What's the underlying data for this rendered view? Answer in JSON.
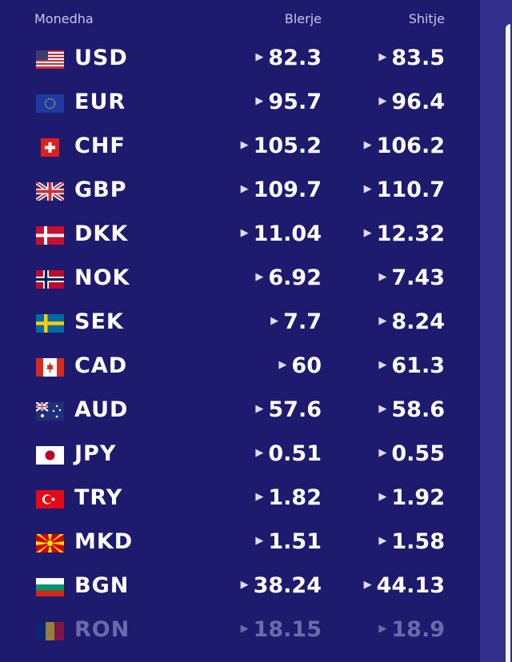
{
  "header": {
    "currency": "Monedha",
    "buy": "Blerje",
    "sell": "Shitje"
  },
  "rows": [
    {
      "code": "USD",
      "buy": "82.3",
      "sell": "83.5",
      "flag": "us-flag-icon"
    },
    {
      "code": "EUR",
      "buy": "95.7",
      "sell": "96.4",
      "flag": "eu-flag-icon"
    },
    {
      "code": "CHF",
      "buy": "105.2",
      "sell": "106.2",
      "flag": "ch-flag-icon"
    },
    {
      "code": "GBP",
      "buy": "109.7",
      "sell": "110.7",
      "flag": "gb-flag-icon"
    },
    {
      "code": "DKK",
      "buy": "11.04",
      "sell": "12.32",
      "flag": "dk-flag-icon"
    },
    {
      "code": "NOK",
      "buy": "6.92",
      "sell": "7.43",
      "flag": "no-flag-icon"
    },
    {
      "code": "SEK",
      "buy": "7.7",
      "sell": "8.24",
      "flag": "se-flag-icon"
    },
    {
      "code": "CAD",
      "buy": "60",
      "sell": "61.3",
      "flag": "ca-flag-icon"
    },
    {
      "code": "AUD",
      "buy": "57.6",
      "sell": "58.6",
      "flag": "au-flag-icon"
    },
    {
      "code": "JPY",
      "buy": "0.51",
      "sell": "0.55",
      "flag": "jp-flag-icon"
    },
    {
      "code": "TRY",
      "buy": "1.82",
      "sell": "1.92",
      "flag": "tr-flag-icon"
    },
    {
      "code": "MKD",
      "buy": "1.51",
      "sell": "1.58",
      "flag": "mk-flag-icon"
    },
    {
      "code": "BGN",
      "buy": "38.24",
      "sell": "44.13",
      "flag": "bg-flag-icon"
    },
    {
      "code": "RON",
      "buy": "18.15",
      "sell": "18.9",
      "flag": "ro-flag-icon"
    }
  ],
  "colors": {
    "panel": "#1e1a6e",
    "background": "#2d2a85",
    "text": "#ffffff"
  }
}
